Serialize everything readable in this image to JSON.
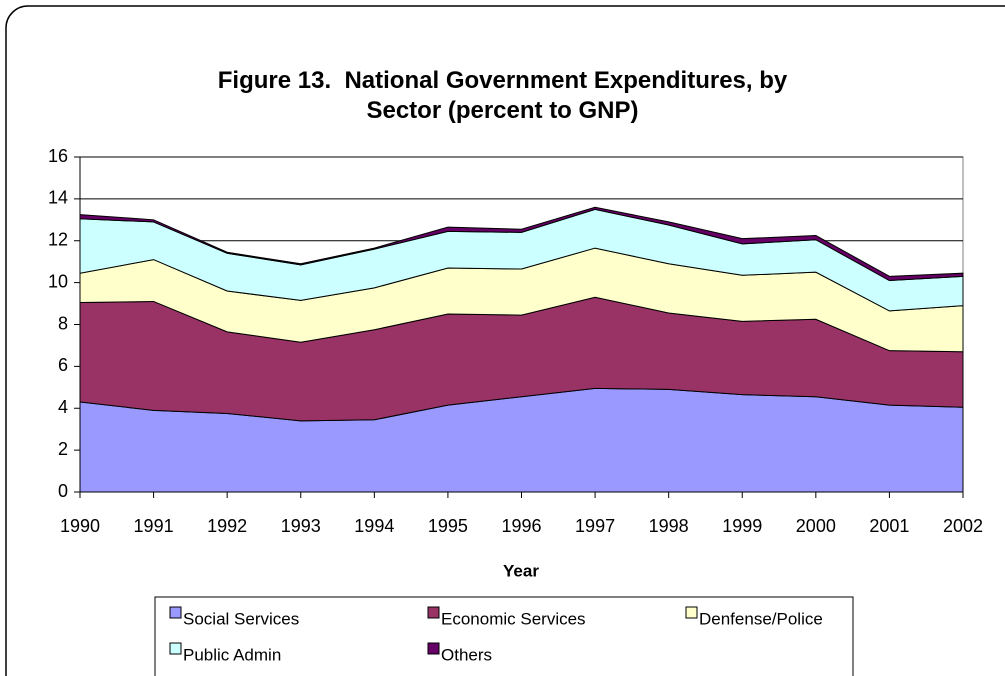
{
  "chart_data": {
    "type": "stacked-area",
    "title": "Figure 13.  National Government Expenditures, by Sector (percent to GNP)",
    "x_label": "Year",
    "categories": [
      "1990",
      "1991",
      "1992",
      "1993",
      "1994",
      "1995",
      "1996",
      "1997",
      "1998",
      "1999",
      "2000",
      "2001",
      "2002"
    ],
    "series": [
      {
        "name": "Social Services",
        "color": "#9999ff",
        "values": [
          4.3,
          3.9,
          3.75,
          3.4,
          3.45,
          4.15,
          4.55,
          4.95,
          4.9,
          4.65,
          4.55,
          4.15,
          4.05
        ]
      },
      {
        "name": "Economic Services",
        "color": "#993366",
        "values": [
          4.75,
          5.2,
          3.9,
          3.75,
          4.3,
          4.35,
          3.9,
          4.35,
          3.65,
          3.5,
          3.7,
          2.6,
          2.65
        ]
      },
      {
        "name": "Denfense/Police",
        "color": "#ffffcc",
        "values": [
          1.4,
          2.0,
          1.95,
          2.0,
          2.0,
          2.2,
          2.2,
          2.35,
          2.35,
          2.2,
          2.25,
          1.9,
          2.2
        ]
      },
      {
        "name": "Public Admin",
        "color": "#ccffff",
        "values": [
          2.6,
          1.8,
          1.8,
          1.7,
          1.85,
          1.75,
          1.75,
          1.85,
          1.85,
          1.5,
          1.55,
          1.45,
          1.4
        ]
      },
      {
        "name": "Others",
        "color": "#660066",
        "values": [
          0.2,
          0.1,
          0.05,
          0.05,
          0.05,
          0.2,
          0.15,
          0.1,
          0.15,
          0.25,
          0.2,
          0.2,
          0.15
        ]
      }
    ],
    "ylim": [
      0,
      16
    ],
    "yticks": [
      0,
      2,
      4,
      6,
      8,
      10,
      12,
      14,
      16
    ],
    "grid": true
  }
}
